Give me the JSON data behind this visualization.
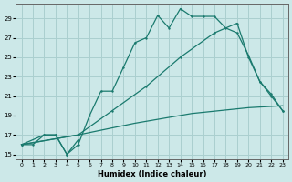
{
  "title": "",
  "xlabel": "Humidex (Indice chaleur)",
  "ylabel": "",
  "bg_color": "#cce8e8",
  "grid_color": "#aacfcf",
  "line_color": "#1a7a6e",
  "xlim": [
    -0.5,
    23.5
  ],
  "ylim": [
    14.5,
    30.5
  ],
  "xticks": [
    0,
    1,
    2,
    3,
    4,
    5,
    6,
    7,
    8,
    9,
    10,
    11,
    12,
    13,
    14,
    15,
    16,
    17,
    18,
    19,
    20,
    21,
    22,
    23
  ],
  "yticks": [
    15,
    17,
    19,
    21,
    23,
    25,
    27,
    29
  ],
  "curve1_x": [
    0,
    1,
    2,
    3,
    4,
    5
  ],
  "curve1_y": [
    16,
    16,
    17,
    17,
    15,
    16.5
  ],
  "curve2_x": [
    0,
    2,
    3,
    4,
    5,
    6,
    7,
    8,
    9,
    10,
    11,
    12,
    13,
    14,
    15,
    16,
    17,
    18,
    19,
    20,
    21,
    22,
    23
  ],
  "curve2_y": [
    16,
    17,
    17,
    15,
    16,
    19,
    21.5,
    21.5,
    24,
    26.5,
    27,
    29.3,
    28,
    30,
    29.2,
    29.2,
    29.2,
    28,
    27.5,
    25.2,
    22.5,
    21.2,
    19.5
  ],
  "curve3_x": [
    0,
    5,
    8,
    11,
    14,
    17,
    19,
    20,
    21,
    22,
    23
  ],
  "curve3_y": [
    16,
    17,
    19.5,
    22,
    25,
    27.5,
    28.5,
    25,
    22.5,
    21,
    19.5
  ],
  "curve4_x": [
    0,
    5,
    10,
    15,
    20,
    23
  ],
  "curve4_y": [
    16,
    17,
    18.2,
    19.2,
    19.8,
    20
  ]
}
